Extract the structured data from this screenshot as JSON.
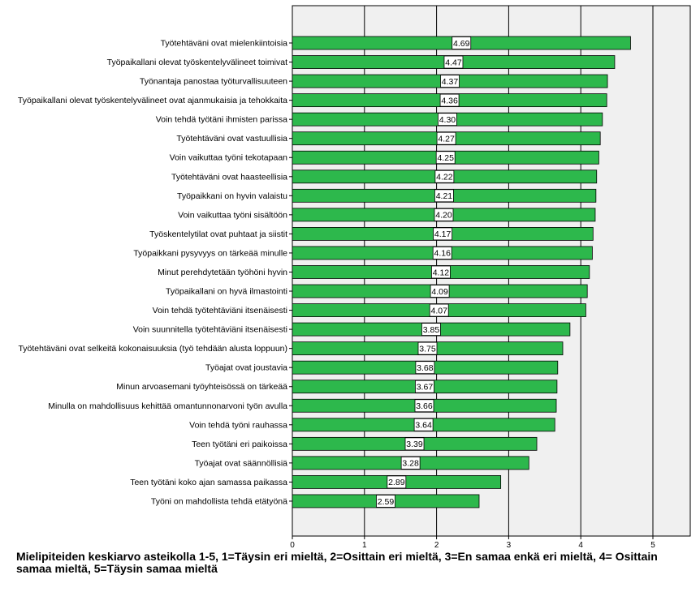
{
  "chart_data": {
    "type": "bar",
    "orientation": "horizontal",
    "categories": [
      "Työtehtäväni ovat mielenkiintoisia",
      "Työpaikallani olevat työskentelyvälineet toimivat",
      "Työnantaja panostaa työturvallisuuteen",
      "Työpaikallani olevat työskentelyvälineet ovat ajanmukaisia ja tehokkaita",
      "Voin tehdä työtäni ihmisten parissa",
      "Työtehtäväni ovat vastuullisia",
      "Voin vaikuttaa työni tekotapaan",
      "Työtehtäväni ovat haasteellisia",
      "Työpaikkani on hyvin valaistu",
      "Voin vaikuttaa työni sisältöön",
      "Työskentelytilat ovat puhtaat ja siistit",
      "Työpaikkani pysyvyys on tärkeää minulle",
      "Minut perehdytetään työhöni hyvin",
      "Työpaikallani on hyvä ilmastointi",
      "Voin tehdä työtehtäviäni itsenäisesti",
      "Voin suunnitella työtehtäviäni itsenäisesti",
      "Työtehtäväni ovat selkeitä kokonaisuuksia (työ tehdään alusta loppuun)",
      "Työajat ovat joustavia",
      "Minun arvoasemani työyhteisössä on tärkeää",
      "Minulla on mahdollisuus kehittää omantunnonarvoni työn avulla",
      "Voin tehdä työni rauhassa",
      "Teen työtäni eri paikoissa",
      "Työajat ovat säännöllisiä",
      "Teen työtäni koko ajan samassa paikassa",
      "Työni on mahdollista tehdä etätyönä"
    ],
    "values": [
      4.69,
      4.47,
      4.37,
      4.36,
      4.3,
      4.27,
      4.25,
      4.22,
      4.21,
      4.2,
      4.17,
      4.16,
      4.12,
      4.09,
      4.07,
      3.85,
      3.75,
      3.68,
      3.67,
      3.66,
      3.64,
      3.39,
      3.28,
      2.89,
      2.59
    ],
    "data_labels": [
      "4.69",
      "4.47",
      "4.37",
      "4.36",
      "4.30",
      "4.27",
      "4.25",
      "4.22",
      "4.21",
      "4.20",
      "4.17",
      "4.16",
      "4.12",
      "4.09",
      "4.07",
      "3.85",
      "3.75",
      "3.68",
      "3.67",
      "3.66",
      "3.64",
      "3.39",
      "3.28",
      "2.89",
      "2.59"
    ],
    "xlim": [
      0,
      5.5
    ],
    "xticks": [
      0,
      1,
      2,
      3,
      4,
      5
    ],
    "xtick_labels": [
      "0",
      "1",
      "2",
      "3",
      "4",
      "5"
    ],
    "xlabel": "Mielipiteiden keskiarvo asteikolla 1-5, 1=Täysin eri mieltä, 2=Osittain eri mieltä, 3=En samaa enkä eri mieltä, 4= Osittain samaa mieltä, 5=Täysin samaa mieltä",
    "title": "",
    "ylabel": "",
    "grid": "vertical",
    "legend": "none",
    "colors": {
      "bar": "#2db84c",
      "bar_stroke": "#000000",
      "plot_background": "#f0f0f0",
      "gridline": "#000000"
    }
  }
}
